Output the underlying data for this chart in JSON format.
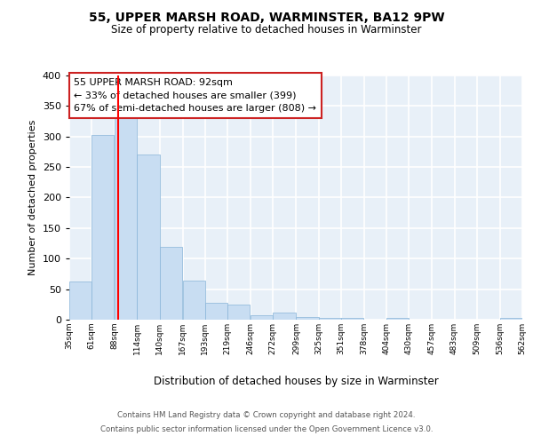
{
  "title": "55, UPPER MARSH ROAD, WARMINSTER, BA12 9PW",
  "subtitle": "Size of property relative to detached houses in Warminster",
  "xlabel": "Distribution of detached houses by size in Warminster",
  "ylabel": "Number of detached properties",
  "bar_color": "#c8ddf2",
  "bar_edge_color": "#88b4d8",
  "background_color": "#e8f0f8",
  "fig_background": "#ffffff",
  "grid_color": "#ffffff",
  "red_line_x": 92,
  "annotation_title": "55 UPPER MARSH ROAD: 92sqm",
  "annotation_line1": "← 33% of detached houses are smaller (399)",
  "annotation_line2": "67% of semi-detached houses are larger (808) →",
  "footnote1": "Contains HM Land Registry data © Crown copyright and database right 2024.",
  "footnote2": "Contains public sector information licensed under the Open Government Licence v3.0.",
  "bin_edges": [
    35,
    61,
    88,
    114,
    140,
    167,
    193,
    219,
    246,
    272,
    299,
    325,
    351,
    378,
    404,
    430,
    457,
    483,
    509,
    536,
    562
  ],
  "bar_heights": [
    63,
    303,
    330,
    271,
    120,
    64,
    28,
    25,
    7,
    12,
    5,
    3,
    3,
    0,
    3,
    0,
    0,
    0,
    0,
    3
  ],
  "ylim": [
    0,
    400
  ],
  "yticks": [
    0,
    50,
    100,
    150,
    200,
    250,
    300,
    350,
    400
  ]
}
